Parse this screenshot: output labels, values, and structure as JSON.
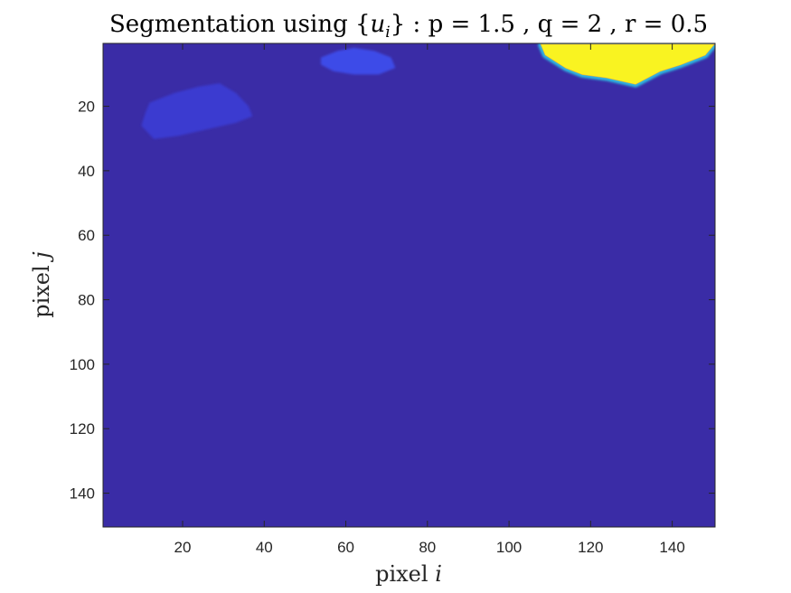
{
  "chart_data": {
    "type": "heatmap",
    "title_parts": {
      "prefix": "Segmentation using {",
      "var": "u",
      "sub": "i",
      "suffix": "} : p = 1.5 , q = 2 , r = 0.5"
    },
    "xlabel": {
      "text": "pixel ",
      "var": "i"
    },
    "ylabel": {
      "text": "pixel ",
      "var": "j"
    },
    "xlim": [
      0.5,
      150.5
    ],
    "ylim": [
      0.5,
      150.5
    ],
    "y_reversed": true,
    "x_ticks": [
      20,
      40,
      60,
      80,
      100,
      120,
      140
    ],
    "y_ticks": [
      20,
      40,
      60,
      80,
      100,
      120,
      140
    ],
    "colormap": "parula",
    "colors": {
      "background": "#3a2ca6",
      "mid_low": "#3b3bd0",
      "mid": "#3e4ce8",
      "bright": "#2fb8e0",
      "high": "#f9f321",
      "orange": "#f2a23a"
    },
    "regions": [
      {
        "name": "yellow-blob-top-right",
        "level": 1.0,
        "polygon": [
          [
            108,
            1
          ],
          [
            150,
            1
          ],
          [
            148,
            4
          ],
          [
            142,
            7
          ],
          [
            137,
            9
          ],
          [
            131,
            13
          ],
          [
            124,
            11
          ],
          [
            118,
            10
          ],
          [
            114,
            8
          ],
          [
            109,
            4
          ]
        ]
      },
      {
        "name": "light-blue-blob-top",
        "level": 0.2,
        "polygon": [
          [
            54,
            5
          ],
          [
            58,
            3
          ],
          [
            62,
            2
          ],
          [
            67,
            3
          ],
          [
            71,
            5
          ],
          [
            72,
            8
          ],
          [
            68,
            10
          ],
          [
            62,
            10
          ],
          [
            57,
            9
          ],
          [
            54,
            7
          ]
        ]
      },
      {
        "name": "faint-blob-left",
        "level": 0.12,
        "polygon": [
          [
            12,
            19
          ],
          [
            18,
            16
          ],
          [
            24,
            14
          ],
          [
            29,
            13
          ],
          [
            33,
            16
          ],
          [
            36,
            20
          ],
          [
            37,
            23
          ],
          [
            33,
            25
          ],
          [
            26,
            27
          ],
          [
            19,
            29
          ],
          [
            13,
            30
          ],
          [
            10,
            26
          ],
          [
            11,
            22
          ]
        ]
      }
    ]
  }
}
